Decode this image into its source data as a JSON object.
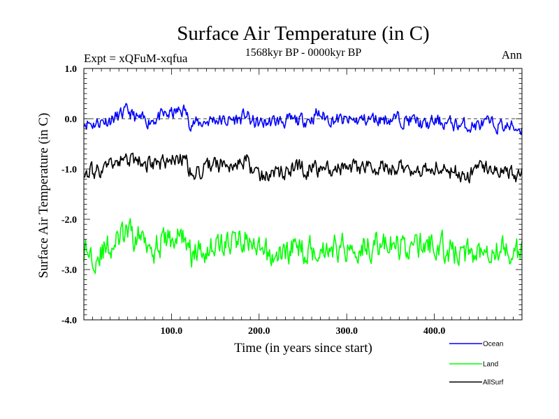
{
  "chart_data": {
    "type": "line",
    "title": "Surface Air Temperature (in C)",
    "subtitle": "1568kyr BP - 0000kyr BP",
    "expt_label": "Expt = xQFuM-xqfua",
    "season_label": "Ann",
    "xlabel": "Time (in years since start)",
    "ylabel": "Surface Air Temperature (in C)",
    "xlim": [
      0,
      500
    ],
    "ylim": [
      -4.0,
      1.0
    ],
    "x_ticks": [
      100,
      200,
      300,
      400
    ],
    "x_tick_labels": [
      "100.0",
      "200.0",
      "300.0",
      "400.0"
    ],
    "y_ticks": [
      1.0,
      0.0,
      -1.0,
      -2.0,
      -3.0,
      -4.0
    ],
    "y_tick_labels": [
      "1.0",
      "0.0",
      "-1.0",
      "-2.0",
      "-3.0",
      "-4.0"
    ],
    "reference_line": 0.0,
    "legend_position": "bottom-right outside",
    "series": [
      {
        "name": "Ocean",
        "color": "#0000ff",
        "anchors": [
          [
            0,
            -0.05
          ],
          [
            10,
            -0.1
          ],
          [
            20,
            -0.05
          ],
          [
            30,
            -0.02
          ],
          [
            40,
            0.05
          ],
          [
            50,
            0.15
          ],
          [
            60,
            0.0
          ],
          [
            70,
            -0.05
          ],
          [
            80,
            0.0
          ],
          [
            90,
            0.05
          ],
          [
            100,
            0.1
          ],
          [
            110,
            0.15
          ],
          [
            115,
            0.18
          ],
          [
            120,
            -0.05
          ],
          [
            130,
            -0.1
          ],
          [
            140,
            -0.05
          ],
          [
            150,
            0.0
          ],
          [
            160,
            -0.05
          ],
          [
            170,
            -0.02
          ],
          [
            180,
            0.0
          ],
          [
            185,
            0.1
          ],
          [
            190,
            -0.05
          ],
          [
            200,
            -0.1
          ],
          [
            220,
            -0.05
          ],
          [
            240,
            -0.05
          ],
          [
            260,
            0.0
          ],
          [
            265,
            0.1
          ],
          [
            280,
            0.0
          ],
          [
            300,
            -0.05
          ],
          [
            320,
            -0.02
          ],
          [
            340,
            0.0
          ],
          [
            360,
            0.0
          ],
          [
            380,
            -0.05
          ],
          [
            390,
            -0.15
          ],
          [
            400,
            -0.05
          ],
          [
            420,
            -0.1
          ],
          [
            440,
            -0.15
          ],
          [
            460,
            -0.1
          ],
          [
            480,
            -0.15
          ],
          [
            500,
            -0.2
          ]
        ],
        "noise": 0.11,
        "seed": 11
      },
      {
        "name": "Land",
        "color": "#00ff00",
        "anchors": [
          [
            0,
            -2.6
          ],
          [
            10,
            -2.7
          ],
          [
            20,
            -2.65
          ],
          [
            30,
            -2.55
          ],
          [
            40,
            -2.4
          ],
          [
            50,
            -2.3
          ],
          [
            60,
            -2.4
          ],
          [
            70,
            -2.3
          ],
          [
            80,
            -2.55
          ],
          [
            90,
            -2.45
          ],
          [
            100,
            -2.4
          ],
          [
            110,
            -2.35
          ],
          [
            115,
            -2.3
          ],
          [
            120,
            -2.7
          ],
          [
            130,
            -2.65
          ],
          [
            140,
            -2.55
          ],
          [
            150,
            -2.5
          ],
          [
            160,
            -2.5
          ],
          [
            170,
            -2.45
          ],
          [
            180,
            -2.4
          ],
          [
            185,
            -2.3
          ],
          [
            190,
            -2.6
          ],
          [
            200,
            -2.7
          ],
          [
            220,
            -2.75
          ],
          [
            240,
            -2.55
          ],
          [
            260,
            -2.6
          ],
          [
            280,
            -2.55
          ],
          [
            300,
            -2.55
          ],
          [
            320,
            -2.5
          ],
          [
            340,
            -2.5
          ],
          [
            360,
            -2.55
          ],
          [
            380,
            -2.55
          ],
          [
            400,
            -2.5
          ],
          [
            420,
            -2.65
          ],
          [
            440,
            -2.7
          ],
          [
            460,
            -2.5
          ],
          [
            480,
            -2.6
          ],
          [
            500,
            -2.7
          ]
        ],
        "noise": 0.22,
        "seed": 29
      },
      {
        "name": "AllSurf",
        "color": "#000000",
        "anchors": [
          [
            0,
            -1.0
          ],
          [
            10,
            -1.05
          ],
          [
            20,
            -1.0
          ],
          [
            30,
            -0.95
          ],
          [
            40,
            -0.85
          ],
          [
            50,
            -0.8
          ],
          [
            60,
            -0.9
          ],
          [
            70,
            -0.85
          ],
          [
            80,
            -0.95
          ],
          [
            90,
            -0.9
          ],
          [
            100,
            -0.85
          ],
          [
            110,
            -0.8
          ],
          [
            115,
            -0.75
          ],
          [
            120,
            -1.05
          ],
          [
            130,
            -1.05
          ],
          [
            140,
            -0.95
          ],
          [
            150,
            -0.95
          ],
          [
            160,
            -0.9
          ],
          [
            170,
            -0.9
          ],
          [
            180,
            -0.88
          ],
          [
            185,
            -0.75
          ],
          [
            190,
            -1.0
          ],
          [
            200,
            -1.1
          ],
          [
            220,
            -1.1
          ],
          [
            240,
            -1.0
          ],
          [
            260,
            -1.0
          ],
          [
            280,
            -0.98
          ],
          [
            300,
            -1.0
          ],
          [
            320,
            -0.95
          ],
          [
            340,
            -0.95
          ],
          [
            360,
            -0.98
          ],
          [
            380,
            -1.0
          ],
          [
            400,
            -0.95
          ],
          [
            420,
            -1.05
          ],
          [
            440,
            -1.1
          ],
          [
            460,
            -1.0
          ],
          [
            480,
            -1.05
          ],
          [
            500,
            -1.15
          ]
        ],
        "noise": 0.13,
        "seed": 47
      }
    ]
  }
}
